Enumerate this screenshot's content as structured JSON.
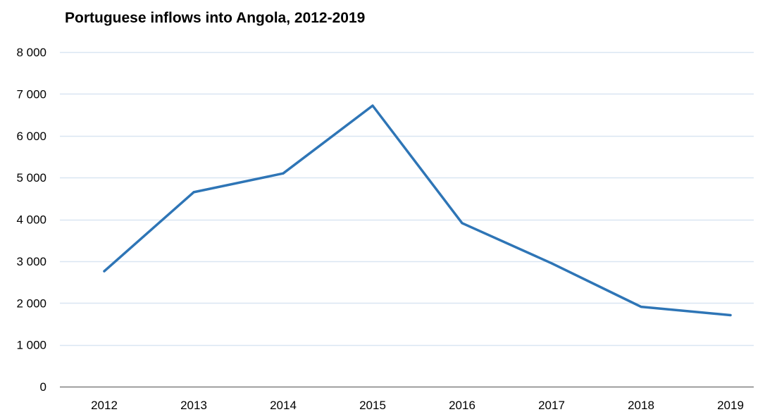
{
  "chart_data": {
    "type": "line",
    "title": "Portuguese inflows into Angola, 2012-2019",
    "xlabel": "",
    "ylabel": "",
    "categories": [
      "2012",
      "2013",
      "2014",
      "2015",
      "2016",
      "2017",
      "2018",
      "2019"
    ],
    "series": [
      {
        "values": [
          2760,
          4650,
          5100,
          6720,
          3910,
          2950,
          1910,
          1710
        ]
      }
    ],
    "ylim": [
      0,
      8000
    ],
    "yticks": [
      0,
      1000,
      2000,
      3000,
      4000,
      5000,
      6000,
      7000,
      8000
    ],
    "ytick_labels": [
      "0",
      "1 000",
      "2 000",
      "3 000",
      "4 000",
      "5 000",
      "6 000",
      "7 000",
      "8 000"
    ],
    "grid": true,
    "legend": "none",
    "colors": {
      "line": "#2e75b6",
      "grid": "#d9e6f2",
      "axis": "#808080"
    }
  }
}
